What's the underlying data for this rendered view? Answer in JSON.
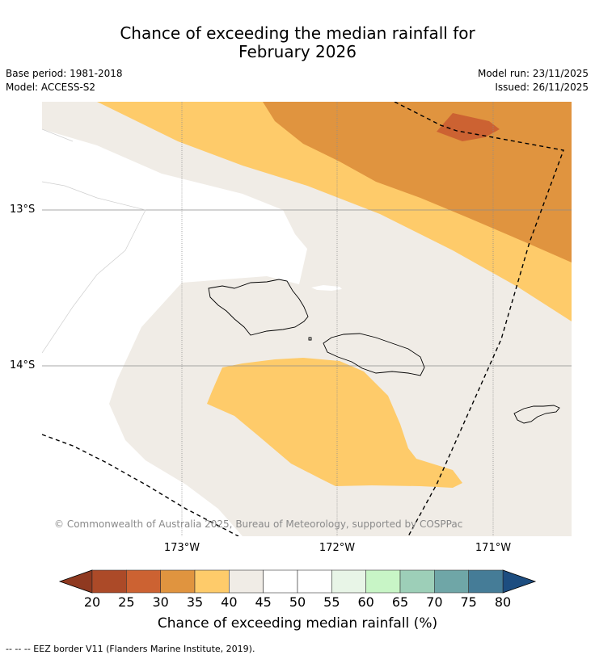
{
  "title": {
    "line1": "Chance of exceeding the median rainfall for",
    "line2": "February 2026"
  },
  "meta": {
    "base_period": "Base period: 1981-2018",
    "model": "Model: ACCESS-S2",
    "model_run": "Model run: 23/11/2025",
    "issued": "Issued: 26/11/2025"
  },
  "map": {
    "lat_labels": [
      "13°S",
      "14°S"
    ],
    "lon_labels": [
      "173°W",
      "172°W",
      "171°W"
    ],
    "copyright": "© Commonwealth of Australia 2025, Bureau of Meteorology, supported by COSPPac",
    "colors": {
      "cat_35_40": "#e0943f",
      "cat_40_45": "#fecb6a",
      "cat_45_55": "#f0ece6",
      "cat_25_30": "#cc6232",
      "gridline": "#8c8c8c",
      "eez": "#000000"
    }
  },
  "colorbar": {
    "ticks": [
      "20",
      "25",
      "30",
      "35",
      "40",
      "45",
      "50",
      "55",
      "60",
      "65",
      "70",
      "75",
      "80"
    ],
    "colors": [
      "#ac4a28",
      "#cc6232",
      "#e0943f",
      "#fecb6a",
      "#f0ece6",
      "#ffffff",
      "#ffffff",
      "#e8f5e7",
      "#c8f5c6",
      "#9dcfb8",
      "#6fa6a7",
      "#457c97"
    ],
    "under_color": "#8f3920",
    "over_color": "#1d4d80",
    "title": "Chance of exceeding median rainfall (%)"
  },
  "footer": {
    "legend": "--  --  -- EEZ border V11 (Flanders Marine Institute, 2019)."
  }
}
